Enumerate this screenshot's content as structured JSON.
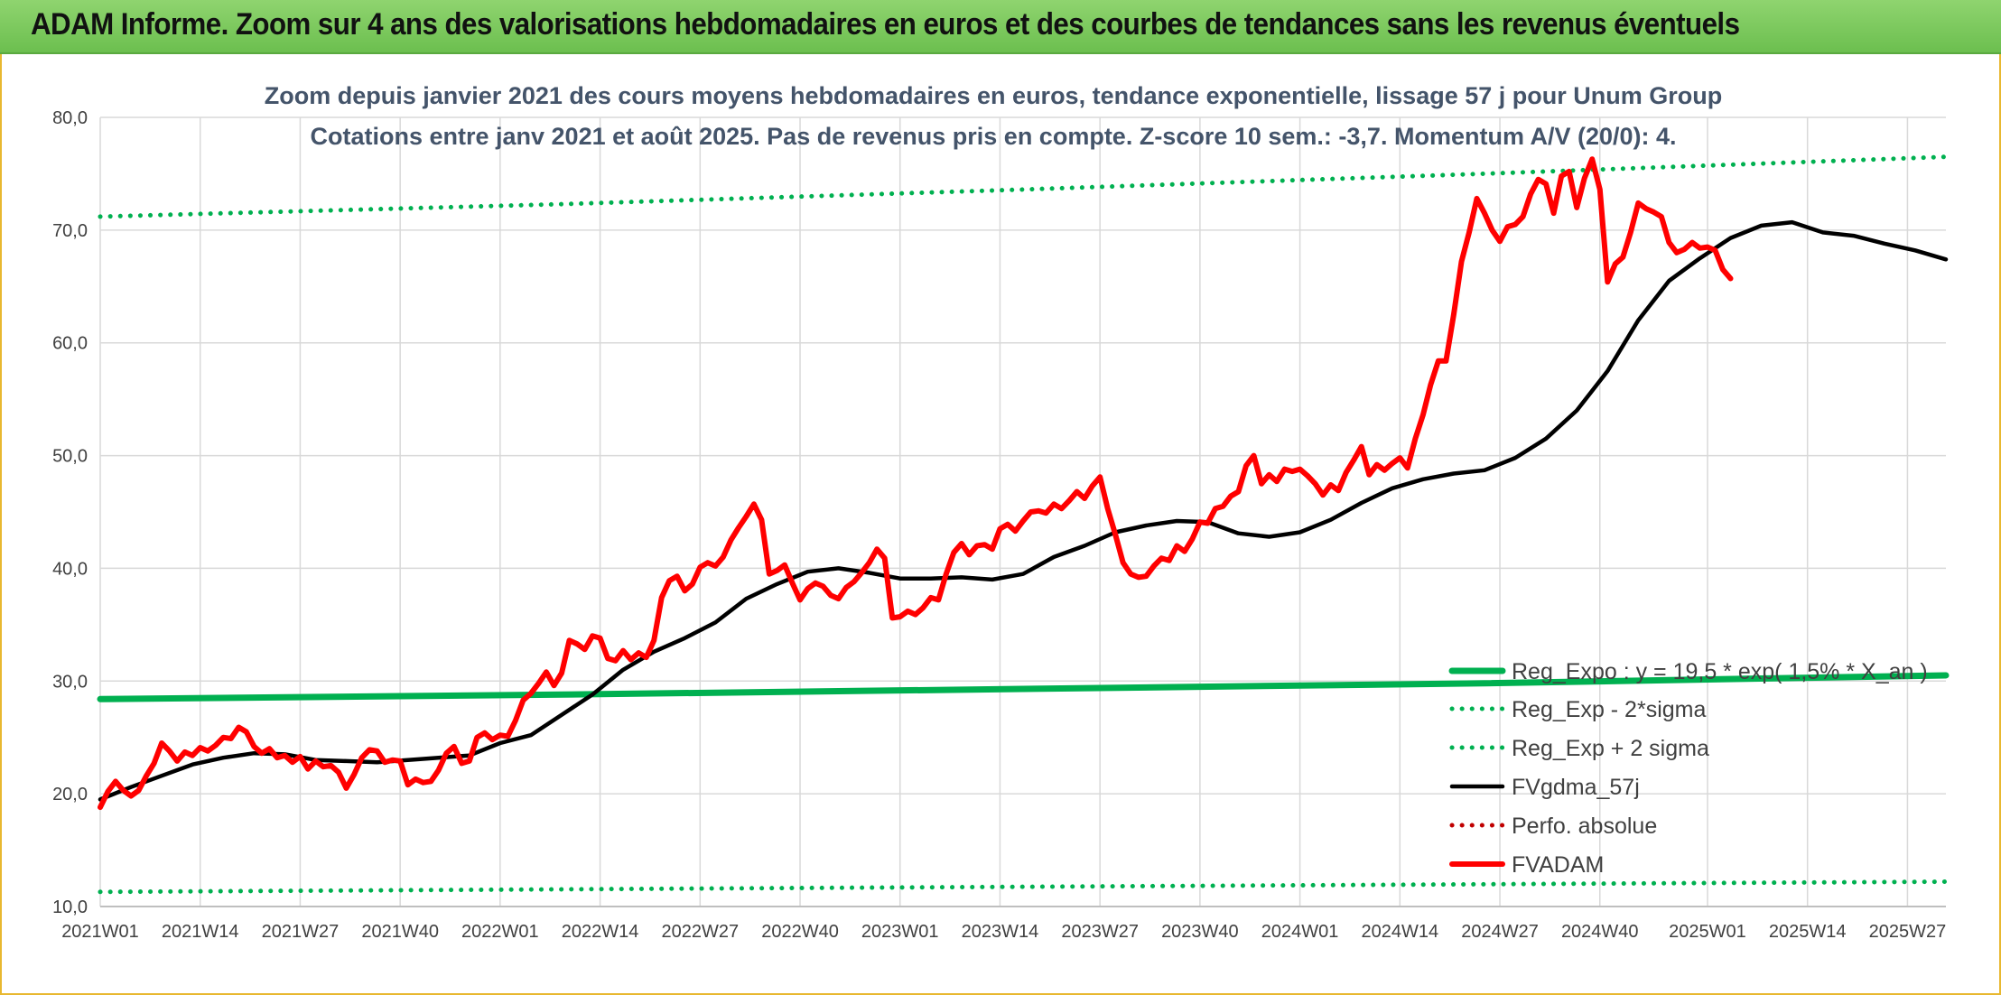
{
  "header": {
    "title": "ADAM Informe. Zoom sur 4 ans des valorisations hebdomadaires en euros et des courbes de tendances sans les revenus éventuels"
  },
  "colors": {
    "header_green": "#6cbf4f",
    "trend_green": "#00b050",
    "fv_black": "#000000",
    "adam_red": "#ff0000",
    "perf_red": "#c00000",
    "grid": "#d9d9d9",
    "frame_gold": "#e8b830"
  },
  "chart_data": {
    "type": "line",
    "title_lines": [
      "Zoom depuis janvier 2021 des cours moyens hebdomadaires en euros, tendance exponentielle, lissage 57 j pour Unum Group",
      "Cotations entre janv 2021 et août 2025. Pas de revenus pris en compte. Z-score 10 sem.: -3,7. Momentum A/V (20/0): 4."
    ],
    "x_unit": "weeks since 2021W01",
    "x_ticks": [
      {
        "x": 0,
        "label": "2021W01"
      },
      {
        "x": 13,
        "label": "2021W14"
      },
      {
        "x": 26,
        "label": "2021W27"
      },
      {
        "x": 39,
        "label": "2021W40"
      },
      {
        "x": 52,
        "label": "2022W01"
      },
      {
        "x": 65,
        "label": "2022W14"
      },
      {
        "x": 78,
        "label": "2022W27"
      },
      {
        "x": 91,
        "label": "2022W40"
      },
      {
        "x": 104,
        "label": "2023W01"
      },
      {
        "x": 117,
        "label": "2023W14"
      },
      {
        "x": 130,
        "label": "2023W27"
      },
      {
        "x": 143,
        "label": "2023W40"
      },
      {
        "x": 156,
        "label": "2024W01"
      },
      {
        "x": 169,
        "label": "2024W14"
      },
      {
        "x": 182,
        "label": "2024W27"
      },
      {
        "x": 195,
        "label": "2024W40"
      },
      {
        "x": 209,
        "label": "2025W01"
      },
      {
        "x": 222,
        "label": "2025W14"
      },
      {
        "x": 235,
        "label": "2025W27"
      }
    ],
    "xlim": [
      0,
      240
    ],
    "y_ticks": [
      "10,0",
      "20,0",
      "30,0",
      "40,0",
      "50,0",
      "60,0",
      "70,0",
      "80,0"
    ],
    "ylim": [
      10,
      80
    ],
    "grid": true,
    "legend_position": "bottom-right",
    "series": [
      {
        "name": "Reg_Expo : y = 19,5 * exp( 1,5% *  X_an )",
        "style": "solid-thick",
        "color": "#00b050",
        "points": [
          [
            0,
            28.4
          ],
          [
            60,
            28.8
          ],
          [
            120,
            29.3
          ],
          [
            180,
            29.8
          ],
          [
            240,
            30.5
          ]
        ]
      },
      {
        "name": "Reg_Exp - 2*sigma",
        "style": "dotted",
        "color": "#00b050",
        "points": [
          [
            0,
            11.3
          ],
          [
            80,
            11.6
          ],
          [
            160,
            11.9
          ],
          [
            240,
            12.2
          ]
        ]
      },
      {
        "name": "Reg_Exp + 2 sigma",
        "style": "dotted",
        "color": "#00b050",
        "points": [
          [
            0,
            71.2
          ],
          [
            60,
            72.3
          ],
          [
            120,
            73.6
          ],
          [
            180,
            75.0
          ],
          [
            240,
            76.5
          ]
        ]
      },
      {
        "name": "FVgdma_57j",
        "style": "solid",
        "color": "#000000",
        "points": [
          [
            0,
            19.5
          ],
          [
            4,
            20.6
          ],
          [
            8,
            21.6
          ],
          [
            12,
            22.6
          ],
          [
            16,
            23.2
          ],
          [
            20,
            23.6
          ],
          [
            24,
            23.5
          ],
          [
            28,
            23.0
          ],
          [
            32,
            22.9
          ],
          [
            36,
            22.8
          ],
          [
            40,
            23.0
          ],
          [
            44,
            23.2
          ],
          [
            48,
            23.4
          ],
          [
            52,
            24.5
          ],
          [
            56,
            25.2
          ],
          [
            60,
            27.0
          ],
          [
            64,
            28.8
          ],
          [
            68,
            31.0
          ],
          [
            72,
            32.6
          ],
          [
            76,
            33.8
          ],
          [
            80,
            35.2
          ],
          [
            84,
            37.3
          ],
          [
            88,
            38.6
          ],
          [
            92,
            39.7
          ],
          [
            96,
            40.0
          ],
          [
            100,
            39.6
          ],
          [
            104,
            39.1
          ],
          [
            108,
            39.1
          ],
          [
            112,
            39.2
          ],
          [
            116,
            39.0
          ],
          [
            120,
            39.5
          ],
          [
            124,
            41.0
          ],
          [
            128,
            42.0
          ],
          [
            132,
            43.2
          ],
          [
            136,
            43.8
          ],
          [
            140,
            44.2
          ],
          [
            144,
            44.1
          ],
          [
            148,
            43.1
          ],
          [
            152,
            42.8
          ],
          [
            156,
            43.2
          ],
          [
            160,
            44.3
          ],
          [
            164,
            45.8
          ],
          [
            168,
            47.1
          ],
          [
            172,
            47.9
          ],
          [
            176,
            48.4
          ],
          [
            180,
            48.7
          ],
          [
            184,
            49.8
          ],
          [
            188,
            51.5
          ],
          [
            192,
            54.0
          ],
          [
            196,
            57.5
          ],
          [
            200,
            62.0
          ],
          [
            204,
            65.5
          ],
          [
            208,
            67.5
          ],
          [
            212,
            69.3
          ],
          [
            216,
            70.4
          ],
          [
            220,
            70.7
          ],
          [
            224,
            69.8
          ],
          [
            228,
            69.5
          ],
          [
            232,
            68.8
          ],
          [
            236,
            68.2
          ],
          [
            240,
            67.4
          ]
        ]
      },
      {
        "name": "Perfo. absolue",
        "style": "dotted",
        "color": "#c00000",
        "points": []
      },
      {
        "name": "FVADAM",
        "style": "solid-thick",
        "color": "#ff0000",
        "points": [
          [
            0,
            18.8
          ],
          [
            1,
            20.2
          ],
          [
            2,
            21.1
          ],
          [
            3,
            20.3
          ],
          [
            4,
            19.8
          ],
          [
            5,
            20.3
          ],
          [
            6,
            21.6
          ],
          [
            7,
            22.7
          ],
          [
            8,
            24.5
          ],
          [
            9,
            23.8
          ],
          [
            10,
            22.9
          ],
          [
            11,
            23.7
          ],
          [
            12,
            23.4
          ],
          [
            13,
            24.1
          ],
          [
            14,
            23.8
          ],
          [
            15,
            24.3
          ],
          [
            16,
            25.0
          ],
          [
            17,
            24.9
          ],
          [
            18,
            25.9
          ],
          [
            19,
            25.5
          ],
          [
            20,
            24.2
          ],
          [
            21,
            23.6
          ],
          [
            22,
            24.0
          ],
          [
            23,
            23.2
          ],
          [
            24,
            23.4
          ],
          [
            25,
            22.8
          ],
          [
            26,
            23.3
          ],
          [
            27,
            22.2
          ],
          [
            28,
            22.9
          ],
          [
            29,
            22.4
          ],
          [
            30,
            22.5
          ],
          [
            31,
            21.9
          ],
          [
            32,
            20.5
          ],
          [
            33,
            21.7
          ],
          [
            34,
            23.2
          ],
          [
            35,
            23.9
          ],
          [
            36,
            23.8
          ],
          [
            37,
            22.8
          ],
          [
            38,
            23.0
          ],
          [
            39,
            22.9
          ],
          [
            40,
            20.8
          ],
          [
            41,
            21.3
          ],
          [
            42,
            21.0
          ],
          [
            43,
            21.1
          ],
          [
            44,
            22.1
          ],
          [
            45,
            23.6
          ],
          [
            46,
            24.2
          ],
          [
            47,
            22.7
          ],
          [
            48,
            22.9
          ],
          [
            49,
            25.0
          ],
          [
            50,
            25.4
          ],
          [
            51,
            24.8
          ],
          [
            52,
            25.2
          ],
          [
            53,
            25.1
          ],
          [
            54,
            26.5
          ],
          [
            55,
            28.3
          ],
          [
            56,
            28.9
          ],
          [
            57,
            29.8
          ],
          [
            58,
            30.8
          ],
          [
            59,
            29.6
          ],
          [
            60,
            30.7
          ],
          [
            61,
            33.6
          ],
          [
            62,
            33.3
          ],
          [
            63,
            32.8
          ],
          [
            64,
            34.0
          ],
          [
            65,
            33.8
          ],
          [
            66,
            32.0
          ],
          [
            67,
            31.8
          ],
          [
            68,
            32.7
          ],
          [
            69,
            31.9
          ],
          [
            70,
            32.5
          ],
          [
            71,
            32.1
          ],
          [
            72,
            33.6
          ],
          [
            73,
            37.4
          ],
          [
            74,
            38.9
          ],
          [
            75,
            39.3
          ],
          [
            76,
            38.0
          ],
          [
            77,
            38.6
          ],
          [
            78,
            40.1
          ],
          [
            79,
            40.5
          ],
          [
            80,
            40.2
          ],
          [
            81,
            41.0
          ],
          [
            82,
            42.5
          ],
          [
            83,
            43.6
          ],
          [
            84,
            44.6
          ],
          [
            85,
            45.7
          ],
          [
            86,
            44.3
          ],
          [
            87,
            39.5
          ],
          [
            88,
            39.8
          ],
          [
            89,
            40.3
          ],
          [
            90,
            38.7
          ],
          [
            91,
            37.2
          ],
          [
            92,
            38.2
          ],
          [
            93,
            38.7
          ],
          [
            94,
            38.4
          ],
          [
            95,
            37.6
          ],
          [
            96,
            37.3
          ],
          [
            97,
            38.3
          ],
          [
            98,
            38.8
          ],
          [
            99,
            39.6
          ],
          [
            100,
            40.5
          ],
          [
            101,
            41.7
          ],
          [
            102,
            40.9
          ],
          [
            103,
            35.6
          ],
          [
            104,
            35.7
          ],
          [
            105,
            36.2
          ],
          [
            106,
            35.9
          ],
          [
            107,
            36.5
          ],
          [
            108,
            37.4
          ],
          [
            109,
            37.2
          ],
          [
            110,
            39.5
          ],
          [
            111,
            41.4
          ],
          [
            112,
            42.2
          ],
          [
            113,
            41.2
          ],
          [
            114,
            42.0
          ],
          [
            115,
            42.1
          ],
          [
            116,
            41.7
          ],
          [
            117,
            43.5
          ],
          [
            118,
            43.9
          ],
          [
            119,
            43.3
          ],
          [
            120,
            44.2
          ],
          [
            121,
            45.0
          ],
          [
            122,
            45.1
          ],
          [
            123,
            44.9
          ],
          [
            124,
            45.7
          ],
          [
            125,
            45.3
          ],
          [
            126,
            46.0
          ],
          [
            127,
            46.8
          ],
          [
            128,
            46.2
          ],
          [
            129,
            47.3
          ],
          [
            130,
            48.1
          ],
          [
            131,
            45.3
          ],
          [
            132,
            43.0
          ],
          [
            133,
            40.5
          ],
          [
            134,
            39.5
          ],
          [
            135,
            39.2
          ],
          [
            136,
            39.3
          ],
          [
            137,
            40.2
          ],
          [
            138,
            40.9
          ],
          [
            139,
            40.7
          ],
          [
            140,
            42.0
          ],
          [
            141,
            41.5
          ],
          [
            142,
            42.6
          ],
          [
            143,
            44.1
          ],
          [
            144,
            44.0
          ],
          [
            145,
            45.3
          ],
          [
            146,
            45.5
          ],
          [
            147,
            46.4
          ],
          [
            148,
            46.8
          ],
          [
            149,
            49.1
          ],
          [
            150,
            50.0
          ],
          [
            151,
            47.5
          ],
          [
            152,
            48.3
          ],
          [
            153,
            47.7
          ],
          [
            154,
            48.8
          ],
          [
            155,
            48.6
          ],
          [
            156,
            48.8
          ],
          [
            157,
            48.2
          ],
          [
            158,
            47.5
          ],
          [
            159,
            46.5
          ],
          [
            160,
            47.4
          ],
          [
            161,
            46.9
          ],
          [
            162,
            48.5
          ],
          [
            163,
            49.6
          ],
          [
            164,
            50.8
          ],
          [
            165,
            48.3
          ],
          [
            166,
            49.2
          ],
          [
            167,
            48.7
          ],
          [
            168,
            49.3
          ],
          [
            169,
            49.8
          ],
          [
            170,
            48.9
          ],
          [
            171,
            51.5
          ],
          [
            172,
            53.6
          ],
          [
            173,
            56.3
          ],
          [
            174,
            58.4
          ],
          [
            175,
            58.4
          ],
          [
            176,
            62.5
          ],
          [
            177,
            67.2
          ],
          [
            178,
            69.8
          ],
          [
            179,
            72.8
          ],
          [
            180,
            71.5
          ],
          [
            181,
            70.0
          ],
          [
            182,
            69.0
          ],
          [
            183,
            70.3
          ],
          [
            184,
            70.5
          ],
          [
            185,
            71.2
          ],
          [
            186,
            73.2
          ],
          [
            187,
            74.5
          ],
          [
            188,
            74.1
          ],
          [
            189,
            71.5
          ],
          [
            190,
            74.8
          ],
          [
            191,
            75.2
          ],
          [
            192,
            72.0
          ],
          [
            193,
            74.6
          ],
          [
            194,
            76.3
          ],
          [
            195,
            73.6
          ],
          [
            196,
            65.4
          ],
          [
            197,
            67.0
          ],
          [
            198,
            67.6
          ],
          [
            199,
            69.8
          ],
          [
            200,
            72.4
          ],
          [
            201,
            71.9
          ],
          [
            202,
            71.6
          ],
          [
            203,
            71.2
          ],
          [
            204,
            68.9
          ],
          [
            205,
            68.0
          ],
          [
            206,
            68.3
          ],
          [
            207,
            68.9
          ],
          [
            208,
            68.4
          ],
          [
            209,
            68.5
          ],
          [
            210,
            68.2
          ],
          [
            211,
            66.5
          ],
          [
            212,
            65.7
          ]
        ]
      }
    ]
  }
}
